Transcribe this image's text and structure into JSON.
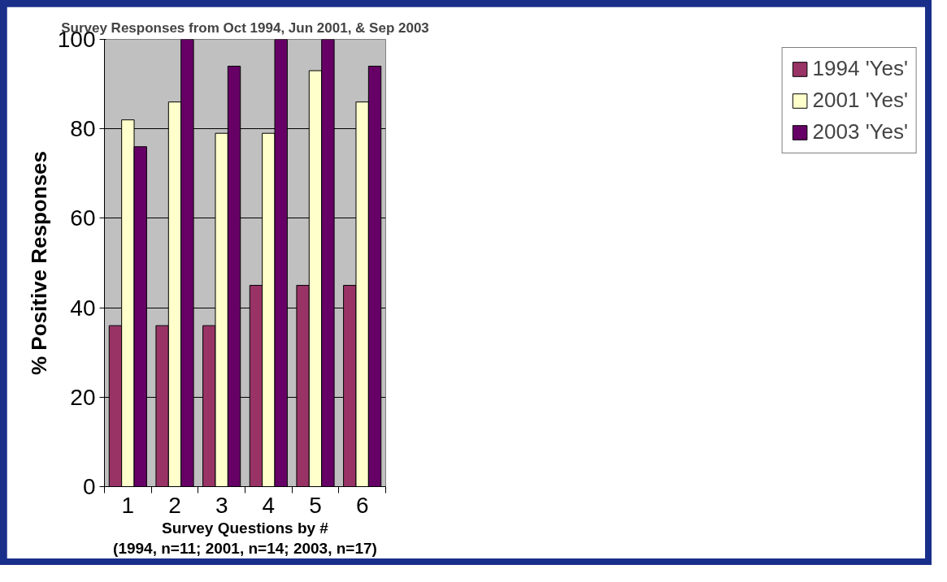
{
  "chart_data": {
    "type": "bar",
    "title": "Survey Responses from Oct 1994, Jun 2001, & Sep 2003",
    "xlabel": "Survey Questions by #\n(1994, n=11; 2001, n=14; 2003, n=17)",
    "ylabel": "% Positive Responses",
    "categories": [
      "1",
      "2",
      "3",
      "4",
      "5",
      "6"
    ],
    "series": [
      {
        "name": "1994 'Yes'",
        "color": "#993366",
        "values": [
          36,
          36,
          36,
          45,
          45,
          45
        ]
      },
      {
        "name": "2001 'Yes'",
        "color": "#ffffcc",
        "values": [
          82,
          86,
          79,
          79,
          93,
          86
        ]
      },
      {
        "name": "2003 'Yes'",
        "color": "#660066",
        "values": [
          76,
          100,
          94,
          100,
          100,
          94
        ]
      }
    ],
    "ylim": [
      0,
      100
    ],
    "yticks": [
      0,
      20,
      40,
      60,
      80,
      100
    ],
    "grid": "y",
    "legend": "right"
  }
}
